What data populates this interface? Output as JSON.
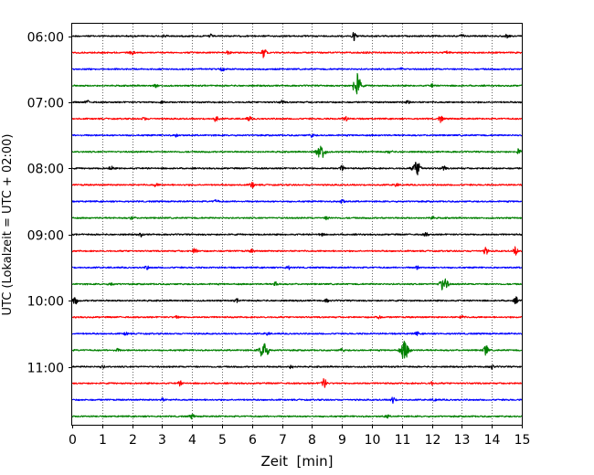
{
  "chart_data": {
    "type": "line",
    "subtype": "helicorder-seismogram",
    "title": "",
    "xlabel": "Zeit  [min]",
    "ylabel": "UTC (Lokalzeit = UTC + 02:00)",
    "xlim": [
      0,
      15
    ],
    "x_ticks": [
      0,
      1,
      2,
      3,
      4,
      5,
      6,
      7,
      8,
      9,
      10,
      11,
      12,
      13,
      14,
      15
    ],
    "x_tick_labels": [
      "0",
      "1",
      "2",
      "3",
      "4",
      "5",
      "6",
      "7",
      "8",
      "9",
      "10",
      "11",
      "12",
      "13",
      "14",
      "15"
    ],
    "y_tick_labels": [
      "06:00",
      "07:00",
      "08:00",
      "09:00",
      "10:00",
      "11:00"
    ],
    "grid": "vertical dotted at each minute",
    "legend": "none",
    "row_minutes": 15,
    "color_cycle": [
      "#000000",
      "#ff0000",
      "#0000ff",
      "#008000"
    ],
    "rows": [
      {
        "start": "06:00",
        "events": [
          [
            9.4,
            1.0
          ],
          [
            3.1,
            0.3
          ],
          [
            4.6,
            0.3
          ],
          [
            13.0,
            0.3
          ],
          [
            14.5,
            0.3
          ]
        ]
      },
      {
        "start": "06:15",
        "events": [
          [
            6.4,
            0.9
          ],
          [
            2.0,
            0.3
          ],
          [
            5.2,
            0.3
          ],
          [
            9.8,
            0.3
          ],
          [
            12.5,
            0.3
          ]
        ]
      },
      {
        "start": "06:30",
        "events": [
          [
            5.0,
            0.4
          ],
          [
            11.0,
            0.3
          ]
        ]
      },
      {
        "start": "06:45",
        "events": [
          [
            9.5,
            2.2
          ],
          [
            2.8,
            0.3
          ],
          [
            12.0,
            0.3
          ]
        ]
      },
      {
        "start": "07:00",
        "events": [
          [
            0.5,
            0.3
          ],
          [
            3.0,
            0.3
          ],
          [
            7.0,
            0.3
          ],
          [
            11.2,
            0.3
          ]
        ]
      },
      {
        "start": "07:15",
        "events": [
          [
            4.8,
            0.6
          ],
          [
            9.1,
            0.6
          ],
          [
            12.3,
            0.6
          ],
          [
            2.4,
            0.3
          ],
          [
            5.9,
            0.4
          ]
        ]
      },
      {
        "start": "07:30",
        "events": [
          [
            3.5,
            0.3
          ],
          [
            8.0,
            0.3
          ]
        ]
      },
      {
        "start": "07:45",
        "events": [
          [
            8.3,
            1.6
          ],
          [
            10.6,
            0.3
          ],
          [
            14.9,
            0.5
          ]
        ]
      },
      {
        "start": "08:00",
        "events": [
          [
            11.5,
            1.4
          ],
          [
            9.0,
            0.5
          ],
          [
            1.3,
            0.4
          ],
          [
            12.4,
            0.4
          ]
        ]
      },
      {
        "start": "08:15",
        "events": [
          [
            6.0,
            0.6
          ],
          [
            2.8,
            0.3
          ],
          [
            10.8,
            0.3
          ]
        ]
      },
      {
        "start": "08:30",
        "events": [
          [
            4.8,
            0.3
          ],
          [
            9.0,
            0.5
          ]
        ]
      },
      {
        "start": "08:45",
        "events": [
          [
            2.0,
            0.3
          ],
          [
            8.5,
            0.3
          ],
          [
            12.0,
            0.3
          ]
        ]
      },
      {
        "start": "09:00",
        "events": [
          [
            2.3,
            0.3
          ],
          [
            8.3,
            0.3
          ],
          [
            11.8,
            0.3
          ]
        ]
      },
      {
        "start": "09:15",
        "events": [
          [
            4.1,
            0.6
          ],
          [
            13.8,
            0.6
          ],
          [
            14.8,
            0.8
          ],
          [
            6.0,
            0.3
          ]
        ]
      },
      {
        "start": "09:30",
        "events": [
          [
            2.5,
            0.3
          ],
          [
            7.2,
            0.3
          ],
          [
            11.5,
            0.3
          ]
        ]
      },
      {
        "start": "09:45",
        "events": [
          [
            12.4,
            1.3
          ],
          [
            6.8,
            0.5
          ],
          [
            1.3,
            0.3
          ]
        ]
      },
      {
        "start": "10:00",
        "events": [
          [
            0.1,
            0.8
          ],
          [
            14.8,
            0.6
          ],
          [
            5.5,
            0.3
          ],
          [
            8.5,
            0.3
          ]
        ]
      },
      {
        "start": "10:15",
        "events": [
          [
            10.2,
            0.4
          ],
          [
            3.5,
            0.3
          ],
          [
            13.0,
            0.3
          ]
        ]
      },
      {
        "start": "10:30",
        "events": [
          [
            1.8,
            0.3
          ],
          [
            6.5,
            0.3
          ],
          [
            11.5,
            0.3
          ]
        ]
      },
      {
        "start": "10:45",
        "events": [
          [
            6.4,
            1.9
          ],
          [
            11.1,
            2.0
          ],
          [
            13.8,
            1.2
          ],
          [
            1.5,
            0.3
          ],
          [
            9.0,
            0.3
          ]
        ]
      },
      {
        "start": "11:00",
        "events": [
          [
            1.0,
            0.3
          ],
          [
            7.3,
            0.3
          ],
          [
            14.0,
            0.4
          ]
        ]
      },
      {
        "start": "11:15",
        "events": [
          [
            8.4,
            1.0
          ],
          [
            3.6,
            0.4
          ],
          [
            12.0,
            0.3
          ]
        ]
      },
      {
        "start": "11:30",
        "events": [
          [
            10.7,
            0.6
          ],
          [
            3.0,
            0.3
          ],
          [
            12.1,
            0.3
          ]
        ]
      },
      {
        "start": "11:45",
        "events": [
          [
            4.0,
            0.4
          ],
          [
            10.5,
            0.3
          ]
        ]
      }
    ]
  }
}
